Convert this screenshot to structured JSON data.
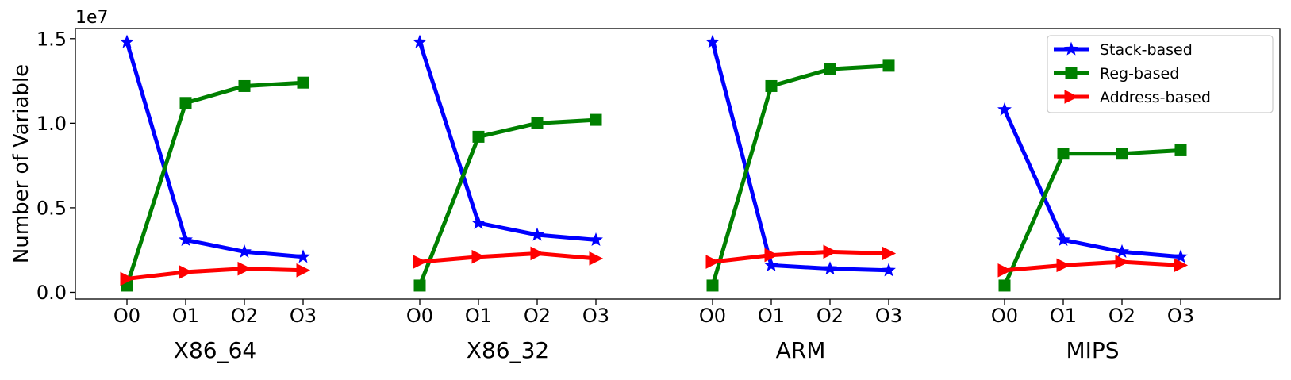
{
  "chart_data": {
    "type": "line",
    "ylabel": "Number of Variable",
    "y_offset_label": "1e7",
    "ylim": [
      -0.04,
      1.56
    ],
    "y_ticks": [
      0.0,
      0.5,
      1.0,
      1.5
    ],
    "y_tick_labels": [
      "0.0",
      "0.5",
      "1.0",
      "1.5"
    ],
    "grid": false,
    "legend_position": "top-right",
    "categories": [
      "O0",
      "O1",
      "O2",
      "O3"
    ],
    "groups": [
      {
        "label": "X86_64",
        "series": [
          {
            "name": "Stack-based",
            "values": [
              1.48,
              0.31,
              0.24,
              0.21
            ]
          },
          {
            "name": "Reg-based",
            "values": [
              0.04,
              1.12,
              1.22,
              1.24
            ]
          },
          {
            "name": "Address-based",
            "values": [
              0.08,
              0.12,
              0.14,
              0.13
            ]
          }
        ]
      },
      {
        "label": "X86_32",
        "series": [
          {
            "name": "Stack-based",
            "values": [
              1.48,
              0.41,
              0.34,
              0.31
            ]
          },
          {
            "name": "Reg-based",
            "values": [
              0.04,
              0.92,
              1.0,
              1.02
            ]
          },
          {
            "name": "Address-based",
            "values": [
              0.18,
              0.21,
              0.23,
              0.2
            ]
          }
        ]
      },
      {
        "label": "ARM",
        "series": [
          {
            "name": "Stack-based",
            "values": [
              1.48,
              0.16,
              0.14,
              0.13
            ]
          },
          {
            "name": "Reg-based",
            "values": [
              0.04,
              1.22,
              1.32,
              1.34
            ]
          },
          {
            "name": "Address-based",
            "values": [
              0.18,
              0.22,
              0.24,
              0.23
            ]
          }
        ]
      },
      {
        "label": "MIPS",
        "series": [
          {
            "name": "Stack-based",
            "values": [
              1.08,
              0.31,
              0.24,
              0.21
            ]
          },
          {
            "name": "Reg-based",
            "values": [
              0.04,
              0.82,
              0.82,
              0.84
            ]
          },
          {
            "name": "Address-based",
            "values": [
              0.13,
              0.16,
              0.18,
              0.16
            ]
          }
        ]
      }
    ],
    "legend": [
      {
        "name": "Stack-based",
        "color": "#0000ff",
        "marker": "star"
      },
      {
        "name": "Reg-based",
        "color": "#008000",
        "marker": "square"
      },
      {
        "name": "Address-based",
        "color": "#ff0000",
        "marker": "triangle-right"
      }
    ]
  }
}
